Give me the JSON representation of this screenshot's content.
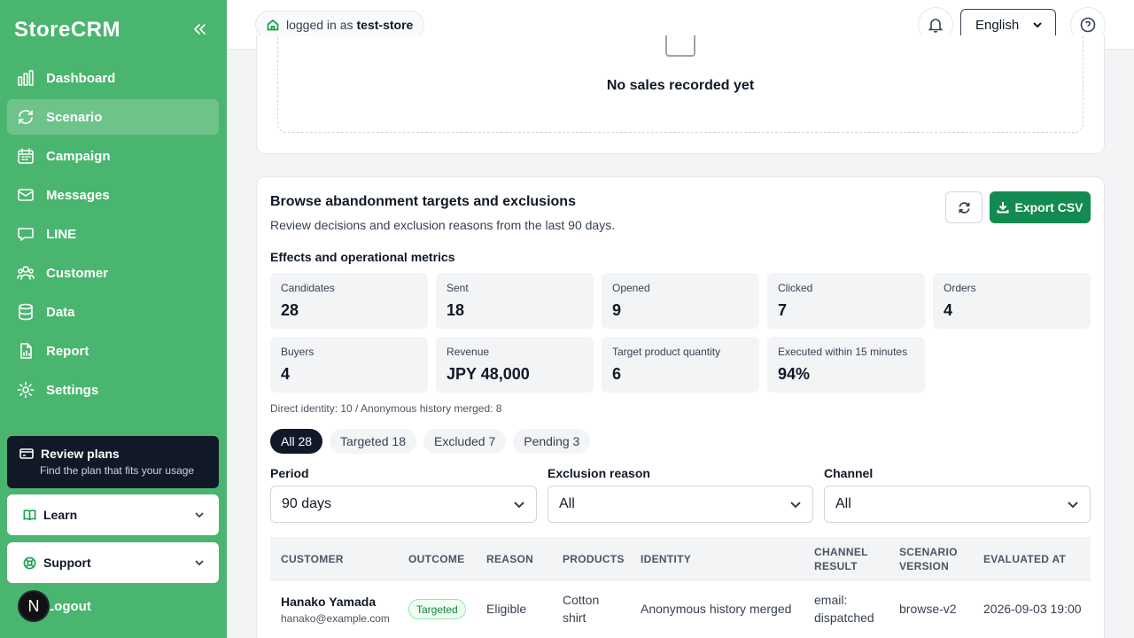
{
  "sidebar": {
    "brand": "StoreCRM",
    "items": [
      {
        "label": "Dashboard",
        "icon": "bar-chart-icon"
      },
      {
        "label": "Scenario",
        "icon": "refresh-cycle-icon"
      },
      {
        "label": "Campaign",
        "icon": "calendar-icon"
      },
      {
        "label": "Messages",
        "icon": "mail-icon"
      },
      {
        "label": "LINE",
        "icon": "chat-bubble-icon"
      },
      {
        "label": "Customer",
        "icon": "users-icon"
      },
      {
        "label": "Data",
        "icon": "database-icon"
      },
      {
        "label": "Report",
        "icon": "file-chart-icon"
      },
      {
        "label": "Settings",
        "icon": "gear-icon"
      }
    ],
    "active": "Scenario",
    "plans": {
      "title": "Review plans",
      "subtitle": "Find the plan that fits your usage"
    },
    "learn": "Learn",
    "support": "Support",
    "logout": "Logout",
    "avatar_letter": "N"
  },
  "header": {
    "logged_prefix": "logged in as",
    "store": "test-store",
    "language": "English"
  },
  "sales": {
    "empty": "No sales recorded yet"
  },
  "browse": {
    "title": "Browse abandonment targets and exclusions",
    "subtitle": "Review decisions and exclusion reasons from the last 90 days.",
    "export": "Export CSV",
    "metrics_title": "Effects and operational metrics",
    "metrics": [
      {
        "label": "Candidates",
        "value": "28"
      },
      {
        "label": "Sent",
        "value": "18"
      },
      {
        "label": "Opened",
        "value": "9"
      },
      {
        "label": "Clicked",
        "value": "7"
      },
      {
        "label": "Orders",
        "value": "4"
      },
      {
        "label": "Buyers",
        "value": "4"
      },
      {
        "label": "Revenue",
        "value": "JPY 48,000"
      },
      {
        "label": "Target product quantity",
        "value": "6"
      },
      {
        "label": "Executed within 15 minutes",
        "value": "94%"
      }
    ],
    "identity_note": "Direct identity: 10 / Anonymous history merged: 8",
    "chips": [
      "All 28",
      "Targeted 18",
      "Excluded 7",
      "Pending 3"
    ],
    "filters": {
      "period_label": "Period",
      "period_value": "90 days",
      "reason_label": "Exclusion reason",
      "reason_value": "All",
      "channel_label": "Channel",
      "channel_value": "All"
    },
    "table": {
      "headers": [
        "CUSTOMER",
        "OUTCOME",
        "REASON",
        "PRODUCTS",
        "IDENTITY",
        "CHANNEL RESULT",
        "SCENARIO VERSION",
        "EVALUATED AT"
      ],
      "rows": [
        {
          "name": "Hanako Yamada",
          "email": "hanako@example.com",
          "outcome": "Targeted",
          "reason": "Eligible",
          "products": "Cotton shirt",
          "identity": "Anonymous history merged",
          "channel": "email: dispatched",
          "version": "browse-v2",
          "evaluated": "2026-09-03 19:00"
        }
      ]
    }
  }
}
